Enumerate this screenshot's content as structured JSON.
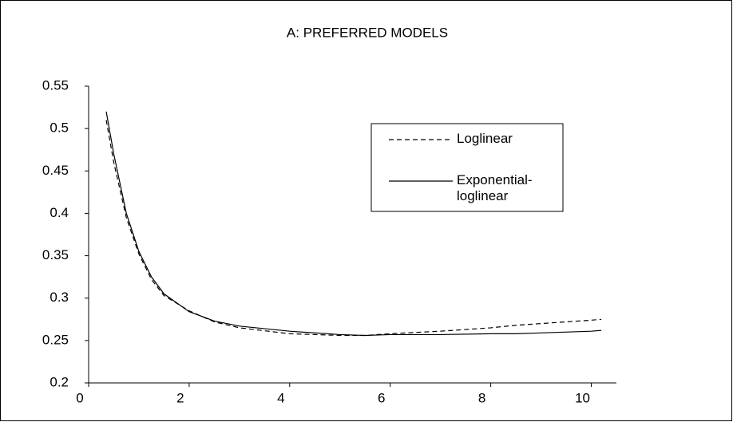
{
  "chart_data": {
    "type": "line",
    "title": "A: PREFERRED MODELS",
    "x": [
      0.35,
      0.5,
      0.75,
      1,
      1.25,
      1.5,
      2,
      2.5,
      3,
      4,
      5,
      5.5,
      6,
      7,
      8,
      8.5,
      9,
      10,
      10.2
    ],
    "series": [
      {
        "name": "Loglinear",
        "color": "#000000",
        "dash": true,
        "values": [
          0.51,
          0.46,
          0.395,
          0.352,
          0.322,
          0.303,
          0.285,
          0.272,
          0.265,
          0.258,
          0.256,
          0.256,
          0.258,
          0.261,
          0.265,
          0.268,
          0.27,
          0.274,
          0.275
        ]
      },
      {
        "name": "Exponential-loglinear",
        "color": "#000000",
        "dash": false,
        "values": [
          0.52,
          0.47,
          0.4,
          0.355,
          0.325,
          0.305,
          0.284,
          0.273,
          0.267,
          0.261,
          0.257,
          0.256,
          0.257,
          0.257,
          0.258,
          0.258,
          0.259,
          0.261,
          0.262
        ]
      }
    ],
    "xlim": [
      0,
      10.5
    ],
    "xticks": [
      0,
      2,
      4,
      6,
      8,
      10
    ],
    "ylim": [
      0.2,
      0.55
    ],
    "yticks": [
      0.2,
      {
        "value": 0.25,
        "label": "0.25"
      },
      {
        "value": 0.3,
        "label": "0.3"
      },
      0.35,
      0.4,
      0.45,
      {
        "value": 0.5,
        "label": "0.5"
      },
      0.55
    ],
    "grid": false,
    "legend": "upper right"
  }
}
